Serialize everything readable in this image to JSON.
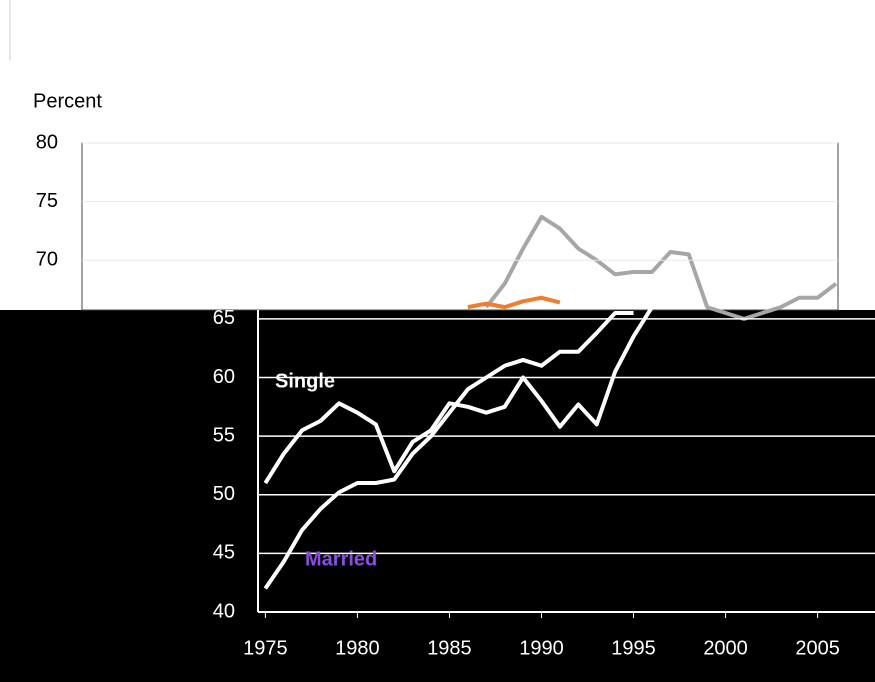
{
  "chart_data": {
    "type": "line",
    "y_axis_label": "Percent",
    "x": [
      1975,
      1976,
      1977,
      1978,
      1979,
      1980,
      1981,
      1982,
      1983,
      1984,
      1985,
      1986,
      1987,
      1988,
      1989,
      1990,
      1991,
      1992,
      1993,
      1994,
      1995,
      1996,
      1997,
      1998,
      1999,
      2000,
      2001,
      2002,
      2003,
      2004,
      2005,
      2006
    ],
    "series": [
      {
        "name": "Single",
        "color": "#ffffff",
        "values": [
          51,
          53.5,
          55.5,
          56.3,
          57.8,
          57,
          56,
          52,
          54.5,
          55.5,
          57.8,
          57.5,
          57,
          57.5,
          60,
          58,
          55.8,
          57.7,
          56,
          60.5,
          63.5,
          66,
          null,
          null,
          null,
          null,
          null,
          null,
          null,
          null,
          null,
          null
        ]
      },
      {
        "name": "Married",
        "color": "#ffffff",
        "label_color": "#8a4fe0",
        "values": [
          42,
          44.3,
          47,
          48.8,
          50.2,
          51,
          51,
          51.3,
          53.5,
          55,
          57,
          59,
          60,
          61,
          61.5,
          61,
          62.2,
          62.2,
          63.8,
          65.5,
          65.5,
          null,
          null,
          null,
          null,
          null,
          null,
          null,
          null,
          null,
          null,
          null
        ]
      },
      {
        "color": "#a6a6a6",
        "values": [
          null,
          null,
          null,
          null,
          null,
          null,
          null,
          null,
          null,
          null,
          null,
          null,
          66,
          68,
          71,
          73.7,
          72.7,
          71,
          70,
          68.8,
          69,
          69,
          70.7,
          70.5,
          66,
          65.5,
          65,
          65.5,
          66,
          66.8,
          66.8,
          68
        ]
      },
      {
        "color": "#ed7d31",
        "values": [
          null,
          null,
          null,
          null,
          null,
          null,
          null,
          null,
          null,
          null,
          null,
          66,
          66.3,
          66,
          66.5,
          66.8,
          66.4,
          null,
          null,
          null,
          null,
          null,
          null,
          null,
          null,
          null,
          null,
          null,
          null,
          null,
          null,
          null
        ]
      }
    ],
    "xlim": [
      1974.6,
      2007.9
    ],
    "xticks": [
      1975,
      1980,
      1985,
      1990,
      1995,
      2000,
      2005
    ],
    "ylim": [
      40,
      80
    ],
    "yticks": [
      40,
      45,
      50,
      55,
      60,
      65,
      70,
      75,
      80
    ],
    "grid": true
  }
}
